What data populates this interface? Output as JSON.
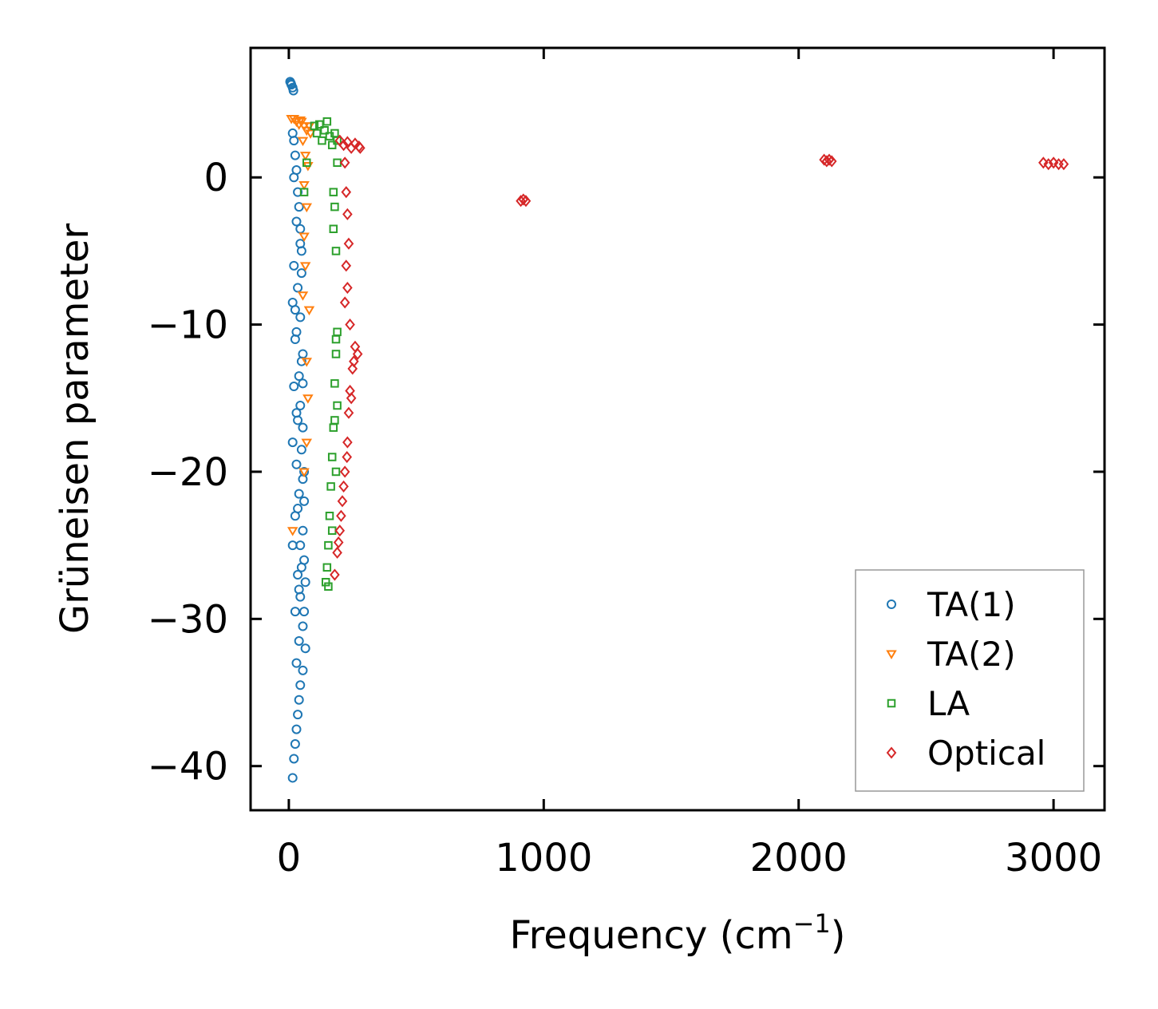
{
  "chart_data": {
    "type": "scatter",
    "title": "",
    "xlabel": "Frequency (cm",
    "xlabel_sup": "−1",
    "xlabel_close": ")",
    "ylabel": "Grüneisen parameter",
    "xlim": [
      -150,
      3200
    ],
    "ylim": [
      -43,
      8.8
    ],
    "x_ticks": [
      0,
      1000,
      2000,
      3000
    ],
    "x_tick_labels": [
      "0",
      "1000",
      "2000",
      "3000"
    ],
    "y_ticks": [
      0,
      -10,
      -20,
      -30,
      -40
    ],
    "y_tick_labels": [
      "0",
      "−10",
      "−20",
      "−30",
      "−40"
    ],
    "grid": false,
    "legend_position": "bottom-right",
    "series": [
      {
        "name": "TA(1)",
        "marker": "circle",
        "color": "#1f77b4",
        "points": [
          [
            5,
            6.5
          ],
          [
            10,
            6.3
          ],
          [
            15,
            6.1
          ],
          [
            18,
            5.9
          ],
          [
            8,
            6.4
          ],
          [
            15,
            3.0
          ],
          [
            20,
            2.5
          ],
          [
            25,
            1.5
          ],
          [
            30,
            0.5
          ],
          [
            20,
            0.0
          ],
          [
            35,
            -1.0
          ],
          [
            40,
            -2.0
          ],
          [
            30,
            -3.0
          ],
          [
            45,
            -4.5
          ],
          [
            20,
            -6.0
          ],
          [
            50,
            -6.5
          ],
          [
            35,
            -7.5
          ],
          [
            15,
            -8.5
          ],
          [
            45,
            -9.5
          ],
          [
            30,
            -10.5
          ],
          [
            25,
            -11.0
          ],
          [
            50,
            -12.5
          ],
          [
            40,
            -13.5
          ],
          [
            55,
            -14.0
          ],
          [
            20,
            -14.2
          ],
          [
            45,
            -15.5
          ],
          [
            35,
            -16.5
          ],
          [
            55,
            -17.0
          ],
          [
            15,
            -18.0
          ],
          [
            50,
            -18.5
          ],
          [
            30,
            -19.5
          ],
          [
            55,
            -20.5
          ],
          [
            40,
            -21.5
          ],
          [
            60,
            -22.0
          ],
          [
            25,
            -23.0
          ],
          [
            55,
            -24.0
          ],
          [
            45,
            -25.0
          ],
          [
            15,
            -25.0
          ],
          [
            60,
            -26.0
          ],
          [
            35,
            -27.0
          ],
          [
            65,
            -27.5
          ],
          [
            45,
            -28.5
          ],
          [
            60,
            -29.5
          ],
          [
            25,
            -29.5
          ],
          [
            55,
            -30.5
          ],
          [
            40,
            -31.5
          ],
          [
            65,
            -32.0
          ],
          [
            30,
            -33.0
          ],
          [
            55,
            -33.5
          ],
          [
            45,
            -34.5
          ],
          [
            40,
            -35.5
          ],
          [
            35,
            -36.5
          ],
          [
            30,
            -37.5
          ],
          [
            25,
            -38.5
          ],
          [
            20,
            -39.5
          ],
          [
            15,
            -40.8
          ],
          [
            50,
            -5.0
          ],
          [
            55,
            -12.0
          ],
          [
            60,
            -20.0
          ],
          [
            50,
            -26.5
          ],
          [
            40,
            -28.0
          ],
          [
            35,
            -22.5
          ],
          [
            30,
            -16.0
          ],
          [
            25,
            -9.0
          ],
          [
            45,
            -3.5
          ]
        ]
      },
      {
        "name": "TA(2)",
        "marker": "triangle",
        "color": "#ff7f0e",
        "points": [
          [
            10,
            4.0
          ],
          [
            20,
            4.0
          ],
          [
            30,
            3.8
          ],
          [
            40,
            3.6
          ],
          [
            50,
            3.8
          ],
          [
            60,
            3.5
          ],
          [
            70,
            3.2
          ],
          [
            80,
            3.5
          ],
          [
            55,
            2.5
          ],
          [
            65,
            1.5
          ],
          [
            75,
            0.8
          ],
          [
            60,
            -0.5
          ],
          [
            70,
            -2.0
          ],
          [
            60,
            -4.0
          ],
          [
            65,
            -6.0
          ],
          [
            80,
            -9.0
          ],
          [
            70,
            -12.5
          ],
          [
            75,
            -15.0
          ],
          [
            60,
            -20.0
          ],
          [
            15,
            -24.0
          ],
          [
            70,
            -18.0
          ],
          [
            55,
            -8.0
          ],
          [
            85,
            3.0
          ],
          [
            45,
            3.9
          ]
        ]
      },
      {
        "name": "LA",
        "marker": "square",
        "color": "#2ca02c",
        "points": [
          [
            100,
            3.5
          ],
          [
            110,
            3.0
          ],
          [
            120,
            3.6
          ],
          [
            130,
            2.5
          ],
          [
            140,
            3.2
          ],
          [
            150,
            3.8
          ],
          [
            160,
            2.8
          ],
          [
            170,
            2.2
          ],
          [
            180,
            3.0
          ],
          [
            190,
            2.5
          ],
          [
            70,
            1.0
          ],
          [
            60,
            -1.0
          ],
          [
            180,
            -2.0
          ],
          [
            175,
            -3.5
          ],
          [
            185,
            -5.0
          ],
          [
            190,
            -10.5
          ],
          [
            185,
            -12.0
          ],
          [
            180,
            -14.0
          ],
          [
            190,
            -15.5
          ],
          [
            175,
            -17.0
          ],
          [
            170,
            -19.0
          ],
          [
            165,
            -21.0
          ],
          [
            160,
            -23.0
          ],
          [
            155,
            -25.0
          ],
          [
            150,
            -26.5
          ],
          [
            145,
            -27.5
          ],
          [
            155,
            -27.8
          ],
          [
            170,
            -24.0
          ],
          [
            185,
            -20.0
          ],
          [
            180,
            -16.5
          ],
          [
            185,
            -11.0
          ],
          [
            175,
            -1.0
          ],
          [
            190,
            1.0
          ]
        ]
      },
      {
        "name": "Optical",
        "marker": "diamond",
        "color": "#d62728",
        "points": [
          [
            200,
            2.5
          ],
          [
            215,
            2.2
          ],
          [
            230,
            2.4
          ],
          [
            245,
            2.0
          ],
          [
            260,
            2.3
          ],
          [
            275,
            2.1
          ],
          [
            280,
            2.0
          ],
          [
            220,
            1.0
          ],
          [
            225,
            -1.0
          ],
          [
            230,
            -2.5
          ],
          [
            235,
            -4.5
          ],
          [
            225,
            -6.0
          ],
          [
            230,
            -7.5
          ],
          [
            220,
            -8.5
          ],
          [
            240,
            -10.0
          ],
          [
            260,
            -11.5
          ],
          [
            270,
            -12.0
          ],
          [
            250,
            -13.0
          ],
          [
            240,
            -14.5
          ],
          [
            235,
            -16.0
          ],
          [
            230,
            -18.0
          ],
          [
            220,
            -20.0
          ],
          [
            210,
            -22.0
          ],
          [
            200,
            -24.0
          ],
          [
            190,
            -25.5
          ],
          [
            180,
            -27.0
          ],
          [
            255,
            -12.5
          ],
          [
            245,
            -15.0
          ],
          [
            228,
            -19.0
          ],
          [
            215,
            -21.0
          ],
          [
            205,
            -23.0
          ],
          [
            195,
            -24.8
          ],
          [
            910,
            -1.6
          ],
          [
            920,
            -1.5
          ],
          [
            930,
            -1.6
          ],
          [
            2100,
            1.2
          ],
          [
            2110,
            1.1
          ],
          [
            2120,
            1.2
          ],
          [
            2130,
            1.1
          ],
          [
            2960,
            1.0
          ],
          [
            2980,
            0.9
          ],
          [
            3000,
            1.0
          ],
          [
            3020,
            0.9
          ],
          [
            3040,
            0.9
          ]
        ]
      }
    ]
  }
}
